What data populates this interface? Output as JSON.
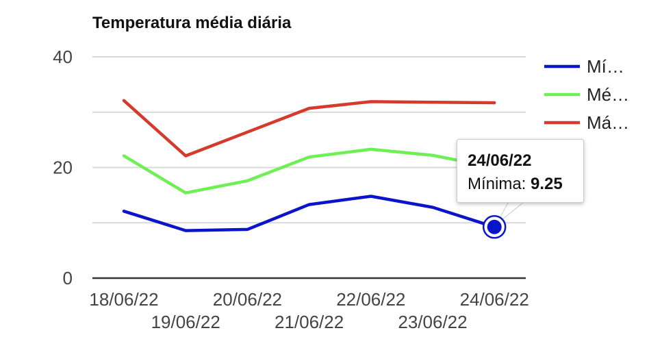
{
  "chart_data": {
    "type": "line",
    "title": "Temperatura média diária",
    "categories": [
      "18/06/22",
      "19/06/22",
      "20/06/22",
      "21/06/22",
      "22/06/22",
      "23/06/22",
      "24/06/22"
    ],
    "series": [
      {
        "name": "Mí…",
        "color": "#0a14c8",
        "values": [
          12.1,
          8.6,
          8.8,
          13.3,
          14.8,
          12.8,
          9.25
        ]
      },
      {
        "name": "Mé…",
        "color": "#6ef054",
        "values": [
          22.1,
          15.4,
          17.6,
          21.9,
          23.3,
          22.2,
          20.0
        ]
      },
      {
        "name": "Má…",
        "color": "#d63a2c",
        "values": [
          32.1,
          22.1,
          26.4,
          30.7,
          31.9,
          31.8,
          31.7
        ]
      }
    ],
    "yticks": [
      0,
      20,
      40
    ],
    "ylim": [
      0,
      40
    ],
    "grid": true,
    "legend": "right",
    "xlabel": "",
    "ylabel": ""
  },
  "tooltip": {
    "date": "24/06/22",
    "label": "Mínima:",
    "value": "9.25"
  }
}
